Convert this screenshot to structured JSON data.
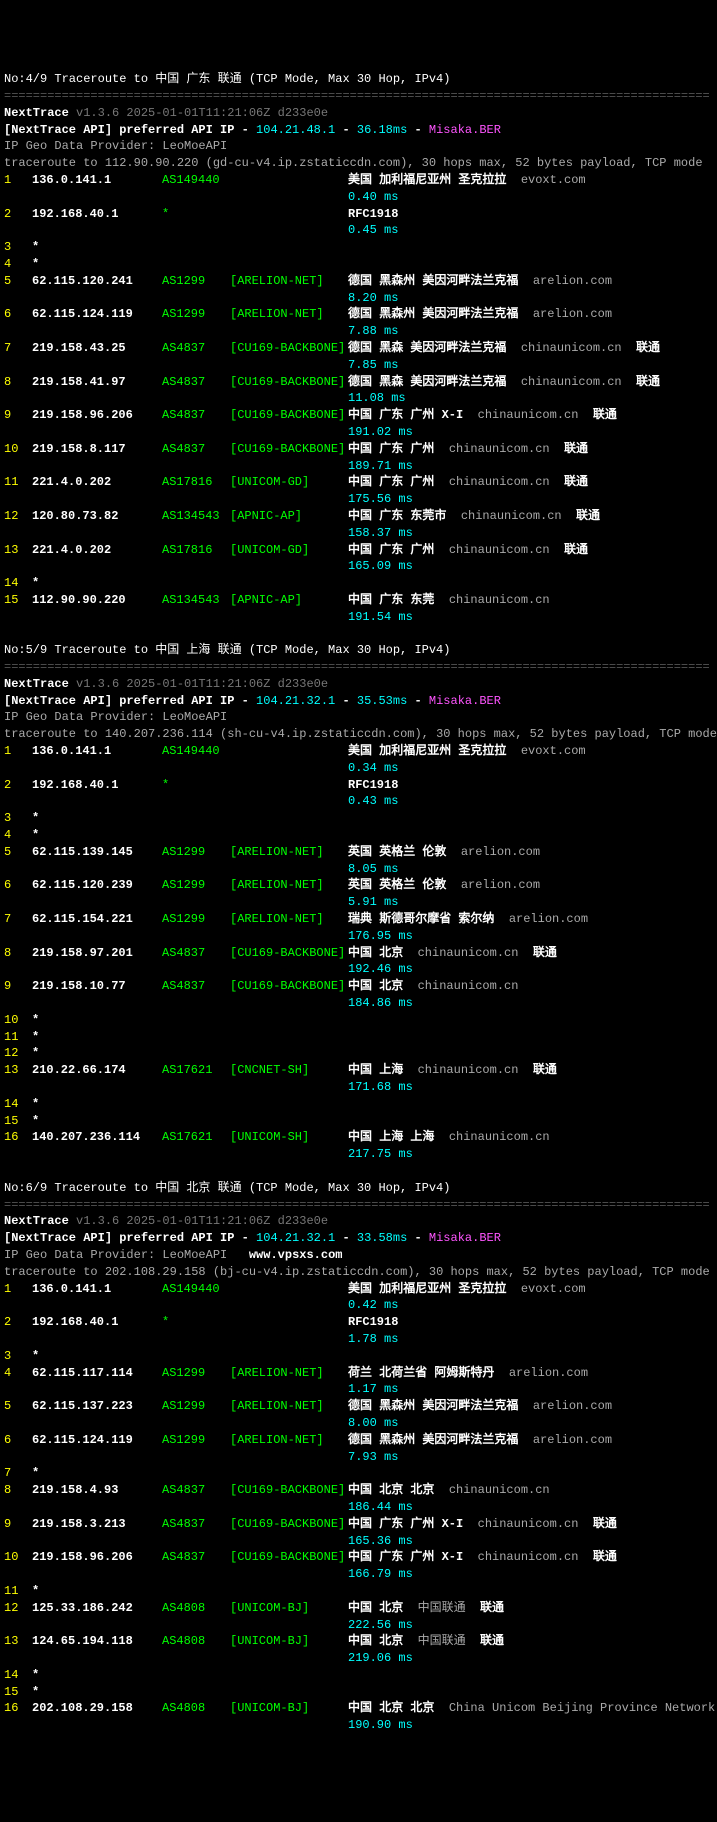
{
  "divider": "==================================================================================================",
  "version": "v1.3.6 2025-01-01T11:21:06Z d233e0e",
  "api_label": "[NextTrace API] preferred API IP -",
  "provider": "IP Geo Data Provider: LeoMoeAPI",
  "watermark": "www.vpsxs.com",
  "traces": [
    {
      "title": "No:4/9 Traceroute to 中国 广东 联通 (TCP Mode, Max 30 Hop, IPv4)",
      "api_ip": "104.21.48.1",
      "api_ms": "36.18ms",
      "api_node": "Misaka.BER",
      "tracert": "traceroute to 112.90.90.220 (gd-cu-v4.ip.zstaticcdn.com), 30 hops max, 52 bytes payload, TCP mode",
      "hops": [
        {
          "n": "1",
          "ip": "136.0.141.1",
          "asn": "AS149440",
          "net": "",
          "loc": "美国 加利福尼亚州 圣克拉拉",
          "dom": "evoxt.com",
          "isp": "",
          "ms": "0.40 ms"
        },
        {
          "n": "2",
          "ip": "192.168.40.1",
          "asn": "*",
          "net": "",
          "loc": "RFC1918",
          "dom": "",
          "isp": "",
          "ms": "0.45 ms",
          "rfc": true
        },
        {
          "n": "3",
          "star": true
        },
        {
          "n": "4",
          "star": true
        },
        {
          "n": "5",
          "ip": "62.115.120.241",
          "asn": "AS1299",
          "net": "[ARELION-NET]",
          "loc": "德国 黑森州 美因河畔法兰克福",
          "dom": "arelion.com",
          "isp": "",
          "ms": "8.20 ms"
        },
        {
          "n": "6",
          "ip": "62.115.124.119",
          "asn": "AS1299",
          "net": "[ARELION-NET]",
          "loc": "德国 黑森州 美因河畔法兰克福",
          "dom": "arelion.com",
          "isp": "",
          "ms": "7.88 ms"
        },
        {
          "n": "7",
          "ip": "219.158.43.25",
          "asn": "AS4837",
          "net": "[CU169-BACKBONE]",
          "loc": "德国 黑森 美因河畔法兰克福",
          "dom": "chinaunicom.cn",
          "isp": "联通",
          "ms": "7.85 ms"
        },
        {
          "n": "8",
          "ip": "219.158.41.97",
          "asn": "AS4837",
          "net": "[CU169-BACKBONE]",
          "loc": "德国 黑森 美因河畔法兰克福",
          "dom": "chinaunicom.cn",
          "isp": "联通",
          "ms": "11.08 ms"
        },
        {
          "n": "9",
          "ip": "219.158.96.206",
          "asn": "AS4837",
          "net": "[CU169-BACKBONE]",
          "loc": "中国 广东 广州 X-I",
          "dom": "chinaunicom.cn",
          "isp": "联通",
          "ms": "191.02 ms"
        },
        {
          "n": "10",
          "ip": "219.158.8.117",
          "asn": "AS4837",
          "net": "[CU169-BACKBONE]",
          "loc": "中国 广东 广州",
          "dom": "chinaunicom.cn",
          "isp": "联通",
          "ms": "189.71 ms"
        },
        {
          "n": "11",
          "ip": "221.4.0.202",
          "asn": "AS17816",
          "net": "[UNICOM-GD]",
          "loc": "中国 广东 广州",
          "dom": "chinaunicom.cn",
          "isp": "联通",
          "ms": "175.56 ms"
        },
        {
          "n": "12",
          "ip": "120.80.73.82",
          "asn": "AS134543",
          "net": "[APNIC-AP]",
          "loc": "中国 广东 东莞市",
          "dom": "chinaunicom.cn",
          "isp": "联通",
          "ms": "158.37 ms"
        },
        {
          "n": "13",
          "ip": "221.4.0.202",
          "asn": "AS17816",
          "net": "[UNICOM-GD]",
          "loc": "中国 广东 广州",
          "dom": "chinaunicom.cn",
          "isp": "联通",
          "ms": "165.09 ms"
        },
        {
          "n": "14",
          "star": true
        },
        {
          "n": "15",
          "ip": "112.90.90.220",
          "asn": "AS134543",
          "net": "[APNIC-AP]",
          "loc": "中国 广东 东莞",
          "dom": "chinaunicom.cn",
          "isp": "",
          "ms": "191.54 ms"
        }
      ]
    },
    {
      "title": "No:5/9 Traceroute to 中国 上海 联通 (TCP Mode, Max 30 Hop, IPv4)",
      "api_ip": "104.21.32.1",
      "api_ms": "35.53ms",
      "api_node": "Misaka.BER",
      "tracert": "traceroute to 140.207.236.114 (sh-cu-v4.ip.zstaticcdn.com), 30 hops max, 52 bytes payload, TCP mode",
      "hops": [
        {
          "n": "1",
          "ip": "136.0.141.1",
          "asn": "AS149440",
          "net": "",
          "loc": "美国 加利福尼亚州 圣克拉拉",
          "dom": "evoxt.com",
          "isp": "",
          "ms": "0.34 ms"
        },
        {
          "n": "2",
          "ip": "192.168.40.1",
          "asn": "*",
          "net": "",
          "loc": "RFC1918",
          "dom": "",
          "isp": "",
          "ms": "0.43 ms",
          "rfc": true
        },
        {
          "n": "3",
          "star": true
        },
        {
          "n": "4",
          "star": true
        },
        {
          "n": "5",
          "ip": "62.115.139.145",
          "asn": "AS1299",
          "net": "[ARELION-NET]",
          "loc": "英国 英格兰 伦敦",
          "dom": "arelion.com",
          "isp": "",
          "ms": "8.05 ms"
        },
        {
          "n": "6",
          "ip": "62.115.120.239",
          "asn": "AS1299",
          "net": "[ARELION-NET]",
          "loc": "英国 英格兰 伦敦",
          "dom": "arelion.com",
          "isp": "",
          "ms": "5.91 ms"
        },
        {
          "n": "7",
          "ip": "62.115.154.221",
          "asn": "AS1299",
          "net": "[ARELION-NET]",
          "loc": "瑞典 斯德哥尔摩省 索尔纳",
          "dom": "arelion.com",
          "isp": "",
          "ms": "176.95 ms"
        },
        {
          "n": "8",
          "ip": "219.158.97.201",
          "asn": "AS4837",
          "net": "[CU169-BACKBONE]",
          "loc": "中国 北京",
          "dom": "chinaunicom.cn",
          "isp": "联通",
          "ms": "192.46 ms"
        },
        {
          "n": "9",
          "ip": "219.158.10.77",
          "asn": "AS4837",
          "net": "[CU169-BACKBONE]",
          "loc": "中国 北京",
          "dom": "chinaunicom.cn",
          "isp": "",
          "ms": "184.86 ms"
        },
        {
          "n": "10",
          "star": true
        },
        {
          "n": "11",
          "star": true
        },
        {
          "n": "12",
          "star": true
        },
        {
          "n": "13",
          "ip": "210.22.66.174",
          "asn": "AS17621",
          "net": "[CNCNET-SH]",
          "loc": "中国 上海",
          "dom": "chinaunicom.cn",
          "isp": "联通",
          "ms": "171.68 ms"
        },
        {
          "n": "14",
          "star": true
        },
        {
          "n": "15",
          "star": true
        },
        {
          "n": "16",
          "ip": "140.207.236.114",
          "asn": "AS17621",
          "net": "[UNICOM-SH]",
          "loc": "中国 上海 上海",
          "dom": "chinaunicom.cn",
          "isp": "",
          "ms": "217.75 ms"
        }
      ]
    },
    {
      "title": "No:6/9 Traceroute to 中国 北京 联通 (TCP Mode, Max 30 Hop, IPv4)",
      "api_ip": "104.21.32.1",
      "api_ms": "33.58ms",
      "api_node": "Misaka.BER",
      "tracert": "traceroute to 202.108.29.158 (bj-cu-v4.ip.zstaticcdn.com), 30 hops max, 52 bytes payload, TCP mode",
      "watermark_after_provider": true,
      "hops": [
        {
          "n": "1",
          "ip": "136.0.141.1",
          "asn": "AS149440",
          "net": "",
          "loc": "美国 加利福尼亚州 圣克拉拉",
          "dom": "evoxt.com",
          "isp": "",
          "ms": "0.42 ms"
        },
        {
          "n": "2",
          "ip": "192.168.40.1",
          "asn": "*",
          "net": "",
          "loc": "RFC1918",
          "dom": "",
          "isp": "",
          "ms": "1.78 ms",
          "rfc": true
        },
        {
          "n": "3",
          "star": true
        },
        {
          "n": "4",
          "ip": "62.115.117.114",
          "asn": "AS1299",
          "net": "[ARELION-NET]",
          "loc": "荷兰 北荷兰省 阿姆斯特丹",
          "dom": "arelion.com",
          "isp": "",
          "ms": "1.17 ms"
        },
        {
          "n": "5",
          "ip": "62.115.137.223",
          "asn": "AS1299",
          "net": "[ARELION-NET]",
          "loc": "德国 黑森州 美因河畔法兰克福",
          "dom": "arelion.com",
          "isp": "",
          "ms": "8.00 ms"
        },
        {
          "n": "6",
          "ip": "62.115.124.119",
          "asn": "AS1299",
          "net": "[ARELION-NET]",
          "loc": "德国 黑森州 美因河畔法兰克福",
          "dom": "arelion.com",
          "isp": "",
          "ms": "7.93 ms"
        },
        {
          "n": "7",
          "star": true
        },
        {
          "n": "8",
          "ip": "219.158.4.93",
          "asn": "AS4837",
          "net": "[CU169-BACKBONE]",
          "loc": "中国 北京 北京",
          "dom": "chinaunicom.cn",
          "isp": "",
          "ms": "186.44 ms"
        },
        {
          "n": "9",
          "ip": "219.158.3.213",
          "asn": "AS4837",
          "net": "[CU169-BACKBONE]",
          "loc": "中国 广东 广州 X-I",
          "dom": "chinaunicom.cn",
          "isp": "联通",
          "ms": "165.36 ms"
        },
        {
          "n": "10",
          "ip": "219.158.96.206",
          "asn": "AS4837",
          "net": "[CU169-BACKBONE]",
          "loc": "中国 广东 广州 X-I",
          "dom": "chinaunicom.cn",
          "isp": "联通",
          "ms": "166.79 ms"
        },
        {
          "n": "11",
          "star": true
        },
        {
          "n": "12",
          "ip": "125.33.186.242",
          "asn": "AS4808",
          "net": "[UNICOM-BJ]",
          "loc": "中国 北京",
          "dom": "中国联通",
          "isp": "联通",
          "ms": "222.56 ms"
        },
        {
          "n": "13",
          "ip": "124.65.194.118",
          "asn": "AS4808",
          "net": "[UNICOM-BJ]",
          "loc": "中国 北京",
          "dom": "中国联通",
          "isp": "联通",
          "ms": "219.06 ms"
        },
        {
          "n": "14",
          "star": true
        },
        {
          "n": "15",
          "star": true
        },
        {
          "n": "16",
          "ip": "202.108.29.158",
          "asn": "AS4808",
          "net": "[UNICOM-BJ]",
          "loc": "中国 北京 北京",
          "dom": "China Unicom Beijing Province Network",
          "isp": "",
          "ms": "190.90 ms"
        }
      ]
    }
  ]
}
